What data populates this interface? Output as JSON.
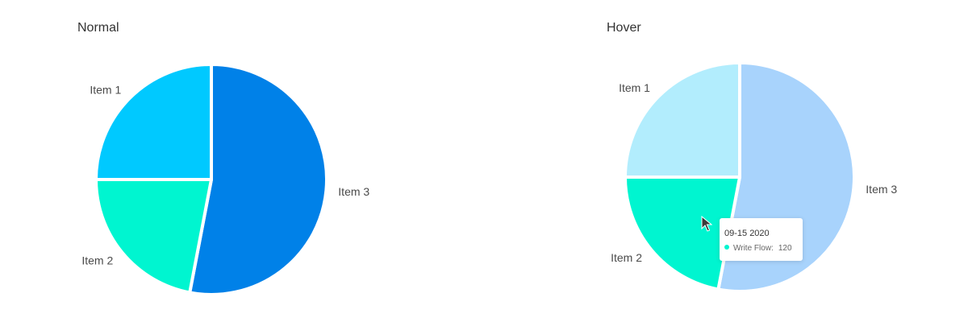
{
  "panels": {
    "normal": {
      "title": "Normal"
    },
    "hover": {
      "title": "Hover"
    }
  },
  "chart_data": [
    {
      "type": "pie",
      "title": "Normal",
      "slices": [
        {
          "name": "Item 3",
          "value": 53,
          "color": "#0081E8"
        },
        {
          "name": "Item 2",
          "value": 22,
          "color": "#00F5D0"
        },
        {
          "name": "Item 1",
          "value": 25,
          "color": "#00C9FF"
        }
      ]
    },
    {
      "type": "pie",
      "title": "Hover",
      "hovered": "Item 2",
      "slices": [
        {
          "name": "Item 3",
          "value": 53,
          "color": "#A8D3FC"
        },
        {
          "name": "Item 2",
          "value": 22,
          "color": "#00F5D0"
        },
        {
          "name": "Item 1",
          "value": 25,
          "color": "#B2EDFD"
        }
      ]
    }
  ],
  "tooltip": {
    "title": "09-15 2020",
    "label": "Write Flow:",
    "value": "120",
    "dot_color": "#00F5D0"
  }
}
